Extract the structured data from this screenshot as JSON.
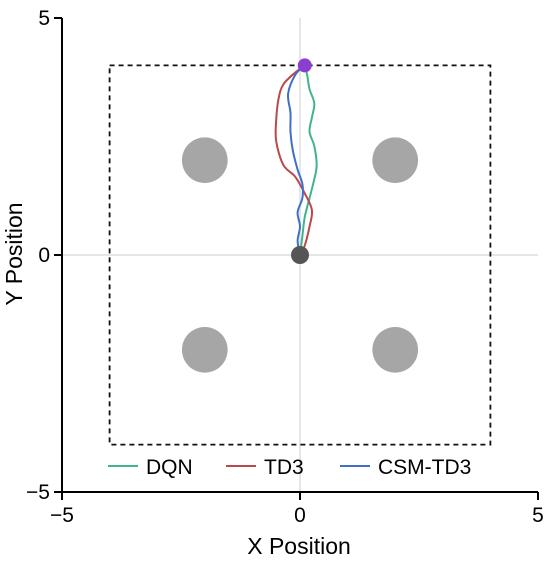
{
  "chart_data": {
    "type": "line",
    "title": "",
    "xlabel": "X Position",
    "ylabel": "Y Position",
    "xlim": [
      -5,
      5
    ],
    "ylim": [
      -5,
      5
    ],
    "xticks": [
      -5,
      0,
      5
    ],
    "yticks": [
      -5,
      0,
      5
    ],
    "grid": "zero-lines",
    "legend_position": "bottom",
    "boundary": {
      "x": [
        -4,
        4
      ],
      "y": [
        -4,
        4
      ],
      "style": "dashed"
    },
    "obstacles": [
      {
        "x": -2,
        "y": 2,
        "r": 0.48
      },
      {
        "x": 2,
        "y": 2,
        "r": 0.48
      },
      {
        "x": -2,
        "y": -2,
        "r": 0.48
      },
      {
        "x": 2,
        "y": -2,
        "r": 0.48
      }
    ],
    "start": {
      "x": 0.0,
      "y": 0.0,
      "color": "#555555"
    },
    "goal": {
      "x": 0.1,
      "y": 4.0,
      "color": "#8a3fcf"
    },
    "series": [
      {
        "name": "DQN",
        "color": "#3fb58a",
        "points": [
          [
            0.0,
            0.0
          ],
          [
            0.05,
            0.4
          ],
          [
            0.1,
            0.8
          ],
          [
            0.2,
            1.2
          ],
          [
            0.3,
            1.6
          ],
          [
            0.35,
            1.9
          ],
          [
            0.3,
            2.3
          ],
          [
            0.2,
            2.6
          ],
          [
            0.25,
            2.9
          ],
          [
            0.3,
            3.2
          ],
          [
            0.2,
            3.5
          ],
          [
            0.15,
            3.8
          ],
          [
            0.1,
            4.0
          ]
        ]
      },
      {
        "name": "TD3",
        "color": "#b84a4a",
        "points": [
          [
            0.0,
            0.0
          ],
          [
            0.1,
            0.2
          ],
          [
            0.2,
            0.6
          ],
          [
            0.25,
            0.95
          ],
          [
            0.1,
            1.3
          ],
          [
            -0.1,
            1.65
          ],
          [
            -0.35,
            1.9
          ],
          [
            -0.5,
            2.4
          ],
          [
            -0.5,
            2.85
          ],
          [
            -0.45,
            3.3
          ],
          [
            -0.35,
            3.6
          ],
          [
            -0.1,
            3.85
          ],
          [
            0.1,
            4.0
          ]
        ]
      },
      {
        "name": "CSM-TD3",
        "color": "#3f6fc9",
        "points": [
          [
            0.0,
            0.0
          ],
          [
            -0.05,
            0.3
          ],
          [
            0.0,
            0.6
          ],
          [
            -0.05,
            0.9
          ],
          [
            0.05,
            1.2
          ],
          [
            0.05,
            1.5
          ],
          [
            -0.05,
            1.8
          ],
          [
            -0.15,
            2.2
          ],
          [
            -0.2,
            2.6
          ],
          [
            -0.2,
            3.0
          ],
          [
            -0.25,
            3.4
          ],
          [
            -0.1,
            3.8
          ],
          [
            0.1,
            4.0
          ]
        ]
      }
    ]
  }
}
